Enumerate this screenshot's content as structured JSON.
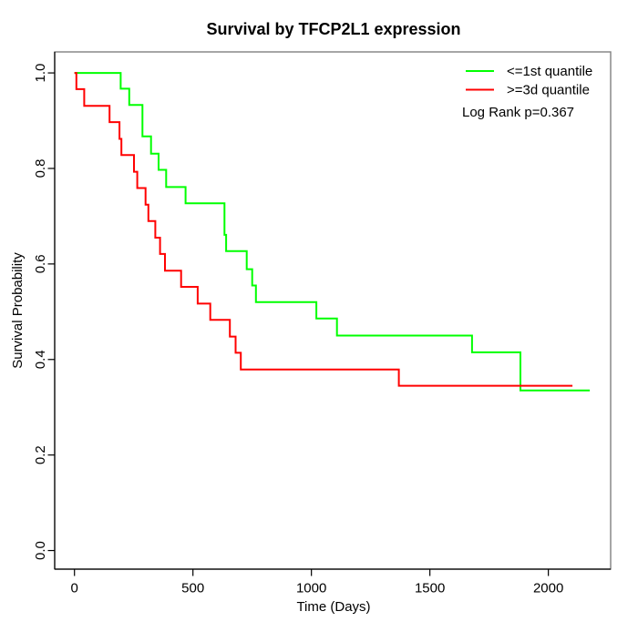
{
  "chart_data": {
    "type": "line",
    "subtype": "kaplan-meier-step",
    "title": "Survival by TFCP2L1 expression",
    "xlabel": "Time (Days)",
    "ylabel": "Survival Probability",
    "xlim": [
      -83.5,
      2263
    ],
    "ylim": [
      -0.039,
      1.044
    ],
    "x_ticks": [
      0,
      500,
      1000,
      1500,
      2000
    ],
    "x_tick_labels": [
      "0",
      "500",
      "1000",
      "1500",
      "2000"
    ],
    "y_ticks": [
      0.0,
      0.2,
      0.4,
      0.6,
      0.8,
      1.0
    ],
    "y_tick_labels": [
      "0.0",
      "0.2",
      "0.4",
      "0.6",
      "0.8",
      "1.0"
    ],
    "grid": false,
    "legend_position": "top-right",
    "annotation": "Log Rank p=0.367",
    "series": [
      {
        "name": "<=1st quantile",
        "color": "#00ff00",
        "end_t": 2175,
        "points": [
          [
            0,
            1.0
          ],
          [
            195,
            0.967
          ],
          [
            231,
            0.933
          ],
          [
            287,
            0.867
          ],
          [
            323,
            0.831
          ],
          [
            355,
            0.797
          ],
          [
            387,
            0.761
          ],
          [
            469,
            0.727
          ],
          [
            633,
            0.661
          ],
          [
            640,
            0.627
          ],
          [
            727,
            0.589
          ],
          [
            750,
            0.555
          ],
          [
            766,
            0.52
          ],
          [
            1021,
            0.486
          ],
          [
            1108,
            0.45
          ],
          [
            1678,
            0.415
          ],
          [
            1882,
            0.335
          ]
        ]
      },
      {
        "name": ">=3d quantile",
        "color": "#ff0000",
        "end_t": 2102,
        "points": [
          [
            0,
            1.0
          ],
          [
            8,
            0.966
          ],
          [
            41,
            0.931
          ],
          [
            148,
            0.897
          ],
          [
            190,
            0.862
          ],
          [
            198,
            0.828
          ],
          [
            251,
            0.793
          ],
          [
            265,
            0.759
          ],
          [
            300,
            0.724
          ],
          [
            312,
            0.69
          ],
          [
            341,
            0.655
          ],
          [
            361,
            0.621
          ],
          [
            382,
            0.586
          ],
          [
            450,
            0.552
          ],
          [
            520,
            0.517
          ],
          [
            573,
            0.483
          ],
          [
            656,
            0.448
          ],
          [
            680,
            0.414
          ],
          [
            702,
            0.379
          ],
          [
            1369,
            0.345
          ]
        ]
      }
    ],
    "colors": {
      "axis": "#000000",
      "box": "#808080",
      "background": "#ffffff"
    }
  }
}
